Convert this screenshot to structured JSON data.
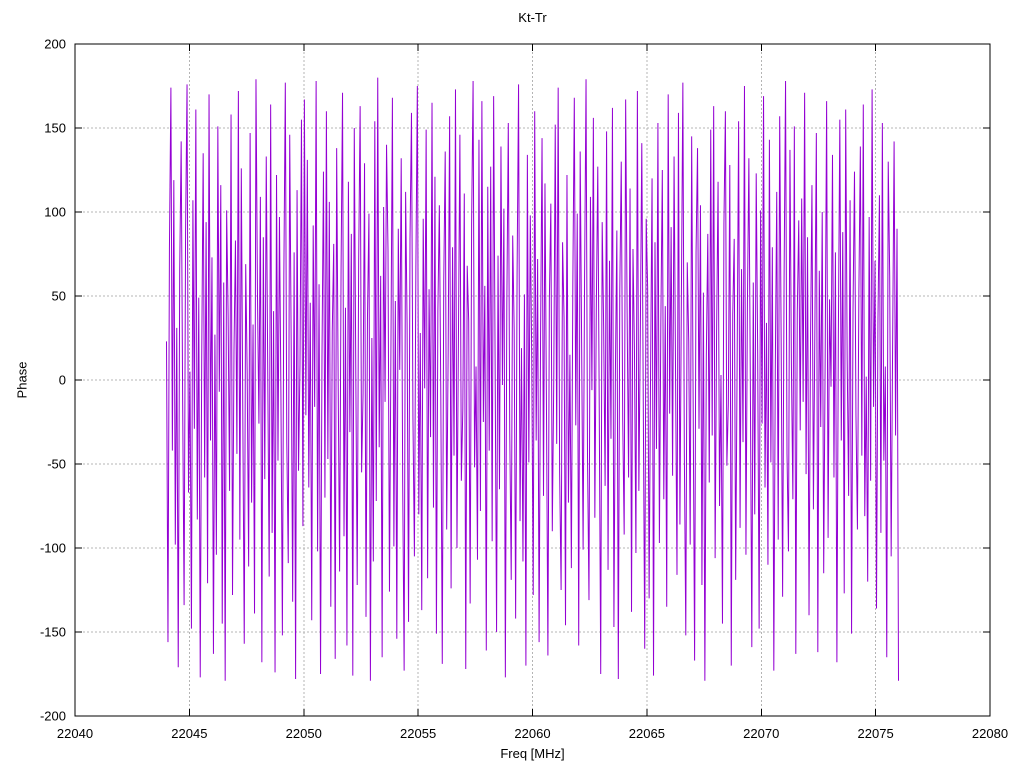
{
  "page": {
    "background": "#ffffff"
  },
  "chart_data": {
    "type": "line",
    "title": "Kt-Tr",
    "xlabel": "Freq [MHz]",
    "ylabel": "Phase",
    "xlim": [
      22040,
      22080
    ],
    "ylim": [
      -200,
      200
    ],
    "x_ticks": [
      22040,
      22045,
      22050,
      22055,
      22060,
      22065,
      22070,
      22075,
      22080
    ],
    "y_ticks": [
      -200,
      -150,
      -100,
      -50,
      0,
      50,
      100,
      150,
      200
    ],
    "grid": true,
    "grid_color": "#b4b4b4",
    "axis_color": "#000000",
    "line_color": "#9400d3",
    "legend": "none",
    "series": [
      {
        "name": "Kt-Tr",
        "x_start": 22044.0,
        "x_end": 22076.0,
        "values": [
          23,
          -156,
          78,
          174,
          -42,
          119,
          -98,
          31,
          -171,
          65,
          142,
          -12,
          -134,
          88,
          176,
          -67,
          5,
          -148,
          107,
          -29,
          161,
          -83,
          49,
          -177,
          12,
          135,
          -58,
          94,
          -121,
          170,
          -36,
          73,
          -163,
          27,
          -104,
          151,
          -7,
          116,
          -145,
          58,
          -179,
          101,
          39,
          -66,
          158,
          -128,
          17,
          83,
          -44,
          172,
          -95,
          126,
          -18,
          -157,
          69,
          4,
          -111,
          147,
          -73,
          33,
          -139,
          179,
          52,
          -26,
          109,
          -168,
          85,
          -59,
          133,
          7,
          -117,
          164,
          -91,
          41,
          -174,
          122,
          -48,
          97,
          -8,
          -152,
          63,
          177,
          -37,
          -109,
          146,
          21,
          -132,
          76,
          -178,
          113,
          -54,
          9,
          155,
          -87,
          167,
          -21,
          131,
          -64,
          46,
          -143,
          92,
          -16,
          178,
          -102,
          57,
          -175,
          14,
          124,
          -70,
          160,
          -47,
          106,
          -135,
          29,
          81,
          -166,
          138,
          2,
          -114,
          66,
          171,
          -93,
          43,
          -158,
          118,
          -31,
          87,
          -176,
          150,
          11,
          -122,
          71,
          163,
          -55,
          -8,
          129,
          -141,
          37,
          99,
          -179,
          25,
          -108,
          154,
          -72,
          180,
          -40,
          62,
          -165,
          103,
          -13,
          140,
          77,
          -126,
          19,
          168,
          -99,
          47,
          -154,
          90,
          6,
          132,
          -61,
          -173,
          112,
          34,
          -144,
          84,
          159,
          -22,
          -105,
          67,
          175,
          -80,
          28,
          -137,
          96,
          -5,
          149,
          -118,
          54,
          -34,
          165,
          -76,
          121,
          -151,
          41,
          104,
          -11,
          -169,
          59,
          136,
          -89,
          16,
          157,
          -124,
          79,
          -45,
          173,
          -100,
          24,
          146,
          -60,
          -17,
          111,
          -172,
          68,
          35,
          -133,
          93,
          178,
          -52,
          8,
          -107,
          143,
          -78,
          166,
          -25,
          56,
          -161,
          115,
          -42,
          127,
          -96,
          169,
          13,
          -150,
          74,
          -65,
          139,
          -3,
          102,
          -177,
          45,
          153,
          -31,
          -119,
          86,
          30,
          -142,
          64,
          176,
          -84,
          19,
          -108,
          51,
          -170,
          134,
          -49,
          98,
          10,
          -128,
          160,
          -36,
          72,
          -156,
          26,
          144,
          -69,
          117,
          -14,
          -164,
          48,
          105,
          -90,
          1,
          152,
          -38,
          174,
          -55,
          -125,
          82,
          37,
          -146,
          122,
          -73,
          15,
          -112,
          58,
          168,
          -27,
          99,
          -158,
          136,
          22,
          -101,
          61,
          179,
          -46,
          -131,
          109,
          -6,
          156,
          -82,
          43,
          127,
          -17,
          -175,
          94,
          32,
          -63,
          148,
          -113,
          71,
          -35,
          162,
          -147,
          3,
          89,
          -178,
          53,
          130,
          -24,
          -92,
          167,
          40,
          -58,
          114,
          -138,
          78,
          18,
          -103,
          172,
          -66,
          28,
          141,
          -11,
          -160,
          96,
          55,
          -130,
          7,
          120,
          -176,
          82,
          -41,
          153,
          -97,
          35,
          125,
          -71,
          44,
          -135,
          170,
          -20,
          91,
          -57,
          133,
          6,
          -116,
          159,
          -86,
          50,
          177,
          -43,
          -152,
          70,
          23,
          -98,
          145,
          -10,
          -167,
          76,
          138,
          -29,
          104,
          -122,
          52,
          -179,
          15,
          87,
          -61,
          149,
          -33,
          163,
          -106,
          29,
          118,
          -75,
          3,
          -145,
          93,
          160,
          -51,
          -14,
          128,
          -170,
          39,
          84,
          -119,
          11,
          154,
          -88,
          66,
          -37,
          175,
          -104,
          45,
          132,
          -2,
          -159,
          58,
          -80,
          123,
          17,
          -148,
          101,
          -26,
          169,
          -64,
          34,
          -110,
          143,
          -49,
          79,
          -173,
          5,
          112,
          -95,
          157,
          25,
          -129,
          61,
          178,
          -44,
          -102,
          137,
          9,
          -71,
          151,
          -163,
          40,
          95,
          -30,
          108,
          -13,
          171,
          -56,
          85,
          -140,
          20,
          116,
          -77,
          31,
          147,
          -162,
          65,
          -28,
          100,
          -115,
          12,
          166,
          -94,
          48,
          -4,
          134,
          -58,
          76,
          -168,
          27,
          155,
          -36,
          88,
          -127,
          161,
          14,
          -69,
          107,
          -151,
          42,
          124,
          -21,
          -89,
          53,
          139,
          -45,
          164,
          -81,
          2,
          -120,
          97,
          -60,
          173,
          -16,
          71,
          -136,
          36,
          110,
          -91,
          153,
          -48,
          8,
          -165,
          130,
          62,
          -105,
          22,
          142,
          -33,
          90,
          -179
        ]
      }
    ]
  }
}
